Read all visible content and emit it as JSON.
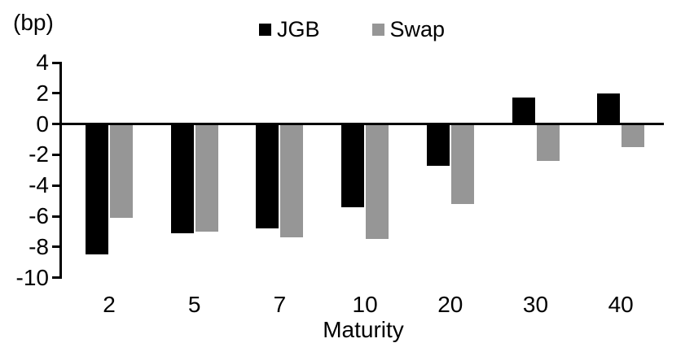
{
  "chart_data": {
    "type": "bar",
    "title": "",
    "ylabel": "(bp)",
    "xlabel": "Maturity",
    "categories": [
      "2",
      "5",
      "7",
      "10",
      "20",
      "30",
      "40"
    ],
    "series": [
      {
        "name": "JGB",
        "color": "#000000",
        "values": [
          -8.5,
          -7.1,
          -6.8,
          -5.4,
          -2.7,
          1.7,
          2.0
        ]
      },
      {
        "name": "Swap",
        "color": "#969696",
        "values": [
          -6.1,
          -7.0,
          -7.4,
          -7.5,
          -5.2,
          -2.4,
          -1.5
        ]
      }
    ],
    "ylim": [
      -10,
      4
    ],
    "yticks": [
      4,
      2,
      0,
      -2,
      -4,
      -6,
      -8,
      -10
    ],
    "grid": false,
    "legend_position": "top",
    "zero_line": true
  }
}
